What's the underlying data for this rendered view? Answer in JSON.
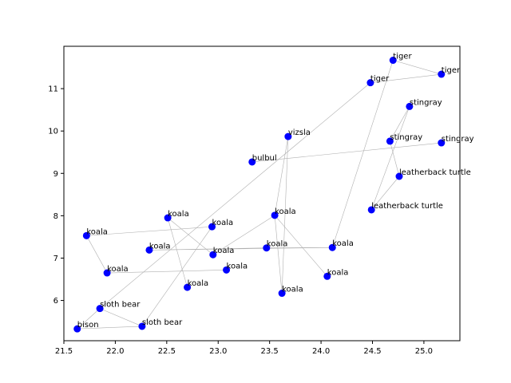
{
  "chart_data": {
    "type": "scatter",
    "title": "",
    "xlabel": "",
    "ylabel": "",
    "xlim": [
      21.5,
      25.35
    ],
    "ylim": [
      5.05,
      12.0
    ],
    "xticks": [
      "21.5",
      "22.0",
      "22.5",
      "23.0",
      "23.5",
      "24.0",
      "24.5",
      "25.0"
    ],
    "yticks": [
      "6",
      "7",
      "8",
      "9",
      "10",
      "11"
    ],
    "grid": false,
    "colors": {
      "marker": "#0000ff",
      "edge": "#b0b0b0"
    },
    "points": [
      {
        "label": "tiger",
        "x": 24.7,
        "y": 11.67
      },
      {
        "label": "tiger",
        "x": 25.17,
        "y": 11.34
      },
      {
        "label": "tiger",
        "x": 24.48,
        "y": 11.14
      },
      {
        "label": "stingray",
        "x": 24.86,
        "y": 10.58
      },
      {
        "label": "stingray",
        "x": 24.67,
        "y": 9.76
      },
      {
        "label": "stingray",
        "x": 25.17,
        "y": 9.72
      },
      {
        "label": "vizsla",
        "x": 23.68,
        "y": 9.87
      },
      {
        "label": "bulbul",
        "x": 23.33,
        "y": 9.27
      },
      {
        "label": "leatherback turtle",
        "x": 24.76,
        "y": 8.93
      },
      {
        "label": "leatherback turtle",
        "x": 24.49,
        "y": 8.14
      },
      {
        "label": "koala",
        "x": 22.51,
        "y": 7.95
      },
      {
        "label": "koala",
        "x": 23.55,
        "y": 8.01
      },
      {
        "label": "koala",
        "x": 22.94,
        "y": 7.74
      },
      {
        "label": "koala",
        "x": 21.72,
        "y": 7.53
      },
      {
        "label": "koala",
        "x": 22.33,
        "y": 7.19
      },
      {
        "label": "koala",
        "x": 23.47,
        "y": 7.24
      },
      {
        "label": "koala",
        "x": 24.11,
        "y": 7.25
      },
      {
        "label": "koala",
        "x": 22.95,
        "y": 7.08
      },
      {
        "label": "koala",
        "x": 23.08,
        "y": 6.72
      },
      {
        "label": "koala",
        "x": 21.92,
        "y": 6.65
      },
      {
        "label": "koala",
        "x": 24.06,
        "y": 6.57
      },
      {
        "label": "koala",
        "x": 22.7,
        "y": 6.31
      },
      {
        "label": "koala",
        "x": 23.62,
        "y": 6.17
      },
      {
        "label": "sloth bear",
        "x": 21.85,
        "y": 5.81
      },
      {
        "label": "sloth bear",
        "x": 22.26,
        "y": 5.39
      },
      {
        "label": "bison",
        "x": 21.63,
        "y": 5.33
      }
    ],
    "edges": [
      [
        0,
        1
      ],
      [
        1,
        2
      ],
      [
        0,
        16
      ],
      [
        2,
        23
      ],
      [
        3,
        4
      ],
      [
        3,
        9
      ],
      [
        4,
        8
      ],
      [
        5,
        7
      ],
      [
        8,
        9
      ],
      [
        6,
        11
      ],
      [
        6,
        22
      ],
      [
        10,
        17
      ],
      [
        11,
        20
      ],
      [
        10,
        21
      ],
      [
        11,
        17
      ],
      [
        12,
        13
      ],
      [
        12,
        24
      ],
      [
        13,
        19
      ],
      [
        14,
        16
      ],
      [
        15,
        16
      ],
      [
        15,
        14
      ],
      [
        18,
        19
      ],
      [
        22,
        11
      ],
      [
        23,
        25
      ],
      [
        23,
        24
      ],
      [
        24,
        25
      ]
    ]
  }
}
